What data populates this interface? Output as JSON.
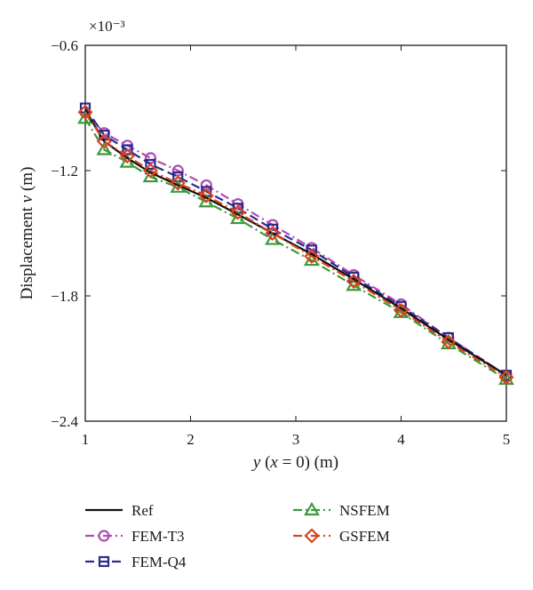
{
  "chart_data": {
    "type": "line",
    "xlabel": "y (x = 0) (m)",
    "ylabel": "Displacement v (m)",
    "y_exponent_label": "×10⁻³",
    "xlim": [
      1,
      5
    ],
    "ylim": [
      -2.4,
      -0.6
    ],
    "xticks": [
      1,
      2,
      3,
      4,
      5
    ],
    "yticks": [
      -0.6,
      -1.2,
      -1.8,
      -2.4
    ],
    "ytick_labels": [
      "−0.6",
      "−1.2",
      "−1.8",
      "−2.4"
    ],
    "grid": false,
    "legend_position": "below plot",
    "series": [
      {
        "name": "Ref",
        "color": "#111111",
        "dash": "solid",
        "marker": "none",
        "x": [
          1,
          1.18,
          1.4,
          1.62,
          1.88,
          2.15,
          2.45,
          2.78,
          3.15,
          3.55,
          4.0,
          4.45,
          5.0
        ],
        "y": [
          -0.91,
          -1.06,
          -1.14,
          -1.21,
          -1.27,
          -1.33,
          -1.41,
          -1.5,
          -1.6,
          -1.72,
          -1.86,
          -2.01,
          -2.18
        ]
      },
      {
        "name": "FEM-T3",
        "color": "#b04cb4",
        "dash": "dashdot",
        "marker": "circle",
        "x": [
          1,
          1.18,
          1.4,
          1.62,
          1.88,
          2.15,
          2.45,
          2.78,
          3.15,
          3.55,
          4.0,
          4.45,
          5.0
        ],
        "y": [
          -0.92,
          -1.02,
          -1.08,
          -1.14,
          -1.2,
          -1.27,
          -1.36,
          -1.46,
          -1.57,
          -1.7,
          -1.84,
          -2.0,
          -2.18
        ]
      },
      {
        "name": "FEM-Q4",
        "color": "#2b2b8c",
        "dash": "dash",
        "marker": "square",
        "x": [
          1,
          1.18,
          1.4,
          1.62,
          1.88,
          2.15,
          2.45,
          2.78,
          3.15,
          3.55,
          4.0,
          4.45,
          5.0
        ],
        "y": [
          -0.9,
          -1.03,
          -1.1,
          -1.17,
          -1.23,
          -1.3,
          -1.38,
          -1.48,
          -1.58,
          -1.71,
          -1.85,
          -2.0,
          -2.18
        ]
      },
      {
        "name": "NSFEM",
        "color": "#3c9a3c",
        "dash": "dashdot",
        "marker": "triangle",
        "x": [
          1,
          1.18,
          1.4,
          1.62,
          1.88,
          2.15,
          2.45,
          2.78,
          3.15,
          3.55,
          4.0,
          4.45,
          5.0
        ],
        "y": [
          -0.95,
          -1.1,
          -1.16,
          -1.23,
          -1.28,
          -1.35,
          -1.43,
          -1.53,
          -1.63,
          -1.75,
          -1.88,
          -2.03,
          -2.2
        ]
      },
      {
        "name": "GSFEM",
        "color": "#d9461e",
        "dash": "dashdot",
        "marker": "diamond",
        "x": [
          1,
          1.18,
          1.4,
          1.62,
          1.88,
          2.15,
          2.45,
          2.78,
          3.15,
          3.55,
          4.0,
          4.45,
          5.0
        ],
        "y": [
          -0.92,
          -1.06,
          -1.13,
          -1.2,
          -1.26,
          -1.32,
          -1.4,
          -1.5,
          -1.61,
          -1.73,
          -1.87,
          -2.02,
          -2.19
        ]
      }
    ]
  }
}
